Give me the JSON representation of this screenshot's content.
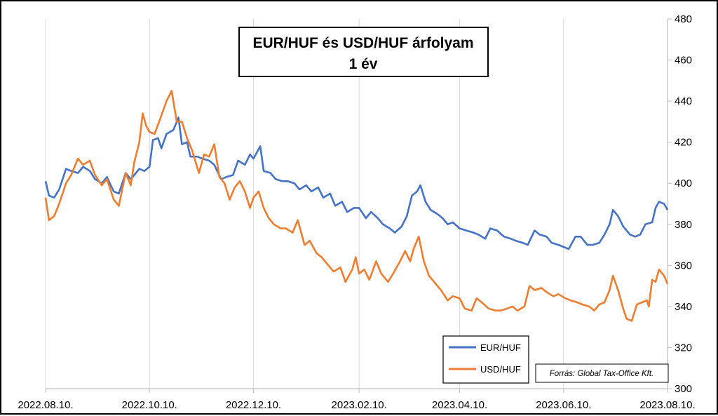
{
  "chart_data": {
    "type": "line",
    "title": "EUR/HUF és USD/HUF árfolyam",
    "subtitle": "1 év",
    "source": "Forrás: Global Tax-Office Kft.",
    "xlabel": "",
    "ylabel": "",
    "ylim": [
      300,
      480
    ],
    "yticks": [
      "300",
      "320",
      "340",
      "360",
      "380",
      "400",
      "420",
      "440",
      "460",
      "480"
    ],
    "xticks": [
      "2022.08.10.",
      "2022.10.10.",
      "2022.12.10.",
      "2023.02.10.",
      "2023.04.10.",
      "2023.06.10.",
      "2023.08.10."
    ],
    "y_axis_position": "right",
    "grid": "vertical",
    "legend_position": "bottom-right",
    "series": [
      {
        "name": "EUR/HUF",
        "color": "#4472C4",
        "points": [
          [
            "2022.08.10.",
            401
          ],
          [
            "2022.08.12.",
            394
          ],
          [
            "2022.08.15.",
            393
          ],
          [
            "2022.08.18.",
            397
          ],
          [
            "2022.08.22.",
            407
          ],
          [
            "2022.08.25.",
            406
          ],
          [
            "2022.08.29.",
            405
          ],
          [
            "2022.09.01.",
            408
          ],
          [
            "2022.09.05.",
            406
          ],
          [
            "2022.09.08.",
            402
          ],
          [
            "2022.09.12.",
            400
          ],
          [
            "2022.09.15.",
            403
          ],
          [
            "2022.09.19.",
            396
          ],
          [
            "2022.09.22.",
            395
          ],
          [
            "2022.09.26.",
            405
          ],
          [
            "2022.09.29.",
            402
          ],
          [
            "2022.10.01.",
            404
          ],
          [
            "2022.10.04.",
            407
          ],
          [
            "2022.10.07.",
            406
          ],
          [
            "2022.10.10.",
            408
          ],
          [
            "2022.10.12.",
            421
          ],
          [
            "2022.10.15.",
            422
          ],
          [
            "2022.10.17.",
            417
          ],
          [
            "2022.10.20.",
            424
          ],
          [
            "2022.10.24.",
            426
          ],
          [
            "2022.10.27.",
            432
          ],
          [
            "2022.10.29.",
            419
          ],
          [
            "2022.11.01.",
            420
          ],
          [
            "2022.11.03.",
            413
          ],
          [
            "2022.11.07.",
            413
          ],
          [
            "2022.11.10.",
            412
          ],
          [
            "2022.11.14.",
            411
          ],
          [
            "2022.11.17.",
            409
          ],
          [
            "2022.11.21.",
            402
          ],
          [
            "2022.11.24.",
            403
          ],
          [
            "2022.11.28.",
            404
          ],
          [
            "2022.12.01.",
            411
          ],
          [
            "2022.12.05.",
            409
          ],
          [
            "2022.12.08.",
            414
          ],
          [
            "2022.12.10.",
            412
          ],
          [
            "2022.12.14.",
            418
          ],
          [
            "2022.12.16.",
            406
          ],
          [
            "2022.12.20.",
            405
          ],
          [
            "2022.12.23.",
            402
          ],
          [
            "2022.12.27.",
            401
          ],
          [
            "2022.12.30.",
            401
          ],
          [
            "2023.01.03.",
            400
          ],
          [
            "2023.01.06.",
            397
          ],
          [
            "2023.01.10.",
            399
          ],
          [
            "2023.01.13.",
            396
          ],
          [
            "2023.01.17.",
            398
          ],
          [
            "2023.01.20.",
            393
          ],
          [
            "2023.01.24.",
            395
          ],
          [
            "2023.01.27.",
            389
          ],
          [
            "2023.01.31.",
            391
          ],
          [
            "2023.02.03.",
            386
          ],
          [
            "2023.02.07.",
            388
          ],
          [
            "2023.02.10.",
            388
          ],
          [
            "2023.02.14.",
            383
          ],
          [
            "2023.02.17.",
            386
          ],
          [
            "2023.02.21.",
            383
          ],
          [
            "2023.02.24.",
            380
          ],
          [
            "2023.02.28.",
            378
          ],
          [
            "2023.03.03.",
            376
          ],
          [
            "2023.03.07.",
            379
          ],
          [
            "2023.03.10.",
            384
          ],
          [
            "2023.03.13.",
            394
          ],
          [
            "2023.03.16.",
            396
          ],
          [
            "2023.03.18.",
            399
          ],
          [
            "2023.03.21.",
            391
          ],
          [
            "2023.03.24.",
            387
          ],
          [
            "2023.03.28.",
            385
          ],
          [
            "2023.03.31.",
            383
          ],
          [
            "2023.04.03.",
            380
          ],
          [
            "2023.04.06.",
            381
          ],
          [
            "2023.04.10.",
            378
          ],
          [
            "2023.04.14.",
            377
          ],
          [
            "2023.04.18.",
            376
          ],
          [
            "2023.04.21.",
            375
          ],
          [
            "2023.04.25.",
            373
          ],
          [
            "2023.04.28.",
            378
          ],
          [
            "2023.05.02.",
            377
          ],
          [
            "2023.05.06.",
            374
          ],
          [
            "2023.05.10.",
            373
          ],
          [
            "2023.05.13.",
            372
          ],
          [
            "2023.05.17.",
            371
          ],
          [
            "2023.05.20.",
            370
          ],
          [
            "2023.05.24.",
            377
          ],
          [
            "2023.05.27.",
            375
          ],
          [
            "2023.05.31.",
            374
          ],
          [
            "2023.06.03.",
            371
          ],
          [
            "2023.06.07.",
            370
          ],
          [
            "2023.06.10.",
            369
          ],
          [
            "2023.06.13.",
            368
          ],
          [
            "2023.06.17.",
            374
          ],
          [
            "2023.06.20.",
            374
          ],
          [
            "2023.06.24.",
            370
          ],
          [
            "2023.06.27.",
            370
          ],
          [
            "2023.07.01.",
            371
          ],
          [
            "2023.07.04.",
            375
          ],
          [
            "2023.07.07.",
            380
          ],
          [
            "2023.07.09.",
            387
          ],
          [
            "2023.07.12.",
            384
          ],
          [
            "2023.07.15.",
            379
          ],
          [
            "2023.07.19.",
            375
          ],
          [
            "2023.07.22.",
            374
          ],
          [
            "2023.07.25.",
            375
          ],
          [
            "2023.07.28.",
            380
          ],
          [
            "2023.08.01.",
            381
          ],
          [
            "2023.08.03.",
            388
          ],
          [
            "2023.08.05.",
            391
          ],
          [
            "2023.08.08.",
            390
          ],
          [
            "2023.08.10.",
            387
          ]
        ]
      },
      {
        "name": "USD/HUF",
        "color": "#ED7D31",
        "points": [
          [
            "2022.08.10.",
            393
          ],
          [
            "2022.08.12.",
            382
          ],
          [
            "2022.08.15.",
            384
          ],
          [
            "2022.08.18.",
            390
          ],
          [
            "2022.08.22.",
            400
          ],
          [
            "2022.08.25.",
            404
          ],
          [
            "2022.08.29.",
            412
          ],
          [
            "2022.09.01.",
            409
          ],
          [
            "2022.09.05.",
            411
          ],
          [
            "2022.09.08.",
            404
          ],
          [
            "2022.09.12.",
            399
          ],
          [
            "2022.09.15.",
            402
          ],
          [
            "2022.09.19.",
            392
          ],
          [
            "2022.09.22.",
            389
          ],
          [
            "2022.09.26.",
            405
          ],
          [
            "2022.09.29.",
            399
          ],
          [
            "2022.10.01.",
            410
          ],
          [
            "2022.10.04.",
            420
          ],
          [
            "2022.10.06.",
            434
          ],
          [
            "2022.10.08.",
            428
          ],
          [
            "2022.10.10.",
            425
          ],
          [
            "2022.10.13.",
            424
          ],
          [
            "2022.10.17.",
            433
          ],
          [
            "2022.10.20.",
            440
          ],
          [
            "2022.10.23.",
            445
          ],
          [
            "2022.10.26.",
            430
          ],
          [
            "2022.10.29.",
            430
          ],
          [
            "2022.11.01.",
            422
          ],
          [
            "2022.11.04.",
            416
          ],
          [
            "2022.11.08.",
            405
          ],
          [
            "2022.11.11.",
            414
          ],
          [
            "2022.11.14.",
            413
          ],
          [
            "2022.11.17.",
            419
          ],
          [
            "2022.11.20.",
            403
          ],
          [
            "2022.11.23.",
            400
          ],
          [
            "2022.11.26.",
            392
          ],
          [
            "2022.11.29.",
            398
          ],
          [
            "2022.12.02.",
            401
          ],
          [
            "2022.12.05.",
            396
          ],
          [
            "2022.12.08.",
            388
          ],
          [
            "2022.12.10.",
            393
          ],
          [
            "2022.12.13.",
            396
          ],
          [
            "2022.12.16.",
            388
          ],
          [
            "2022.12.19.",
            383
          ],
          [
            "2022.12.22.",
            380
          ],
          [
            "2022.12.26.",
            378
          ],
          [
            "2022.12.29.",
            378
          ],
          [
            "2023.01.02.",
            376
          ],
          [
            "2023.01.05.",
            382
          ],
          [
            "2023.01.09.",
            370
          ],
          [
            "2023.01.12.",
            372
          ],
          [
            "2023.01.16.",
            366
          ],
          [
            "2023.01.19.",
            364
          ],
          [
            "2023.01.23.",
            360
          ],
          [
            "2023.01.26.",
            357
          ],
          [
            "2023.01.30.",
            359
          ],
          [
            "2023.02.02.",
            352
          ],
          [
            "2023.02.06.",
            358
          ],
          [
            "2023.02.08.",
            364
          ],
          [
            "2023.02.10.",
            356
          ],
          [
            "2023.02.13.",
            358
          ],
          [
            "2023.02.16.",
            353
          ],
          [
            "2023.02.20.",
            362
          ],
          [
            "2023.02.23.",
            356
          ],
          [
            "2023.02.27.",
            352
          ],
          [
            "2023.03.02.",
            356
          ],
          [
            "2023.03.06.",
            362
          ],
          [
            "2023.03.09.",
            367
          ],
          [
            "2023.03.12.",
            362
          ],
          [
            "2023.03.14.",
            368
          ],
          [
            "2023.03.17.",
            374
          ],
          [
            "2023.03.20.",
            362
          ],
          [
            "2023.03.23.",
            355
          ],
          [
            "2023.03.27.",
            351
          ],
          [
            "2023.03.30.",
            348
          ],
          [
            "2023.04.03.",
            343
          ],
          [
            "2023.04.06.",
            345
          ],
          [
            "2023.04.10.",
            344
          ],
          [
            "2023.04.13.",
            339
          ],
          [
            "2023.04.17.",
            338
          ],
          [
            "2023.04.20.",
            344
          ],
          [
            "2023.04.23.",
            342
          ],
          [
            "2023.04.27.",
            339
          ],
          [
            "2023.05.01.",
            338
          ],
          [
            "2023.05.04.",
            338
          ],
          [
            "2023.05.08.",
            339
          ],
          [
            "2023.05.11.",
            340
          ],
          [
            "2023.05.14.",
            338
          ],
          [
            "2023.05.18.",
            340
          ],
          [
            "2023.05.21.",
            350
          ],
          [
            "2023.05.24.",
            348
          ],
          [
            "2023.05.28.",
            349
          ],
          [
            "2023.05.31.",
            347
          ],
          [
            "2023.06.04.",
            345
          ],
          [
            "2023.06.07.",
            346
          ],
          [
            "2023.06.11.",
            344
          ],
          [
            "2023.06.14.",
            343
          ],
          [
            "2023.06.18.",
            342
          ],
          [
            "2023.06.21.",
            341
          ],
          [
            "2023.06.25.",
            340
          ],
          [
            "2023.06.28.",
            338
          ],
          [
            "2023.07.01.",
            341
          ],
          [
            "2023.07.04.",
            342
          ],
          [
            "2023.07.07.",
            348
          ],
          [
            "2023.07.09.",
            355
          ],
          [
            "2023.07.12.",
            348
          ],
          [
            "2023.07.15.",
            339
          ],
          [
            "2023.07.17.",
            334
          ],
          [
            "2023.07.20.",
            333
          ],
          [
            "2023.07.23.",
            341
          ],
          [
            "2023.07.26.",
            342
          ],
          [
            "2023.07.29.",
            343
          ],
          [
            "2023.07.30.",
            340
          ],
          [
            "2023.08.01.",
            353
          ],
          [
            "2023.08.03.",
            352
          ],
          [
            "2023.08.05.",
            358
          ],
          [
            "2023.08.08.",
            355
          ],
          [
            "2023.08.10.",
            351
          ]
        ]
      }
    ]
  }
}
